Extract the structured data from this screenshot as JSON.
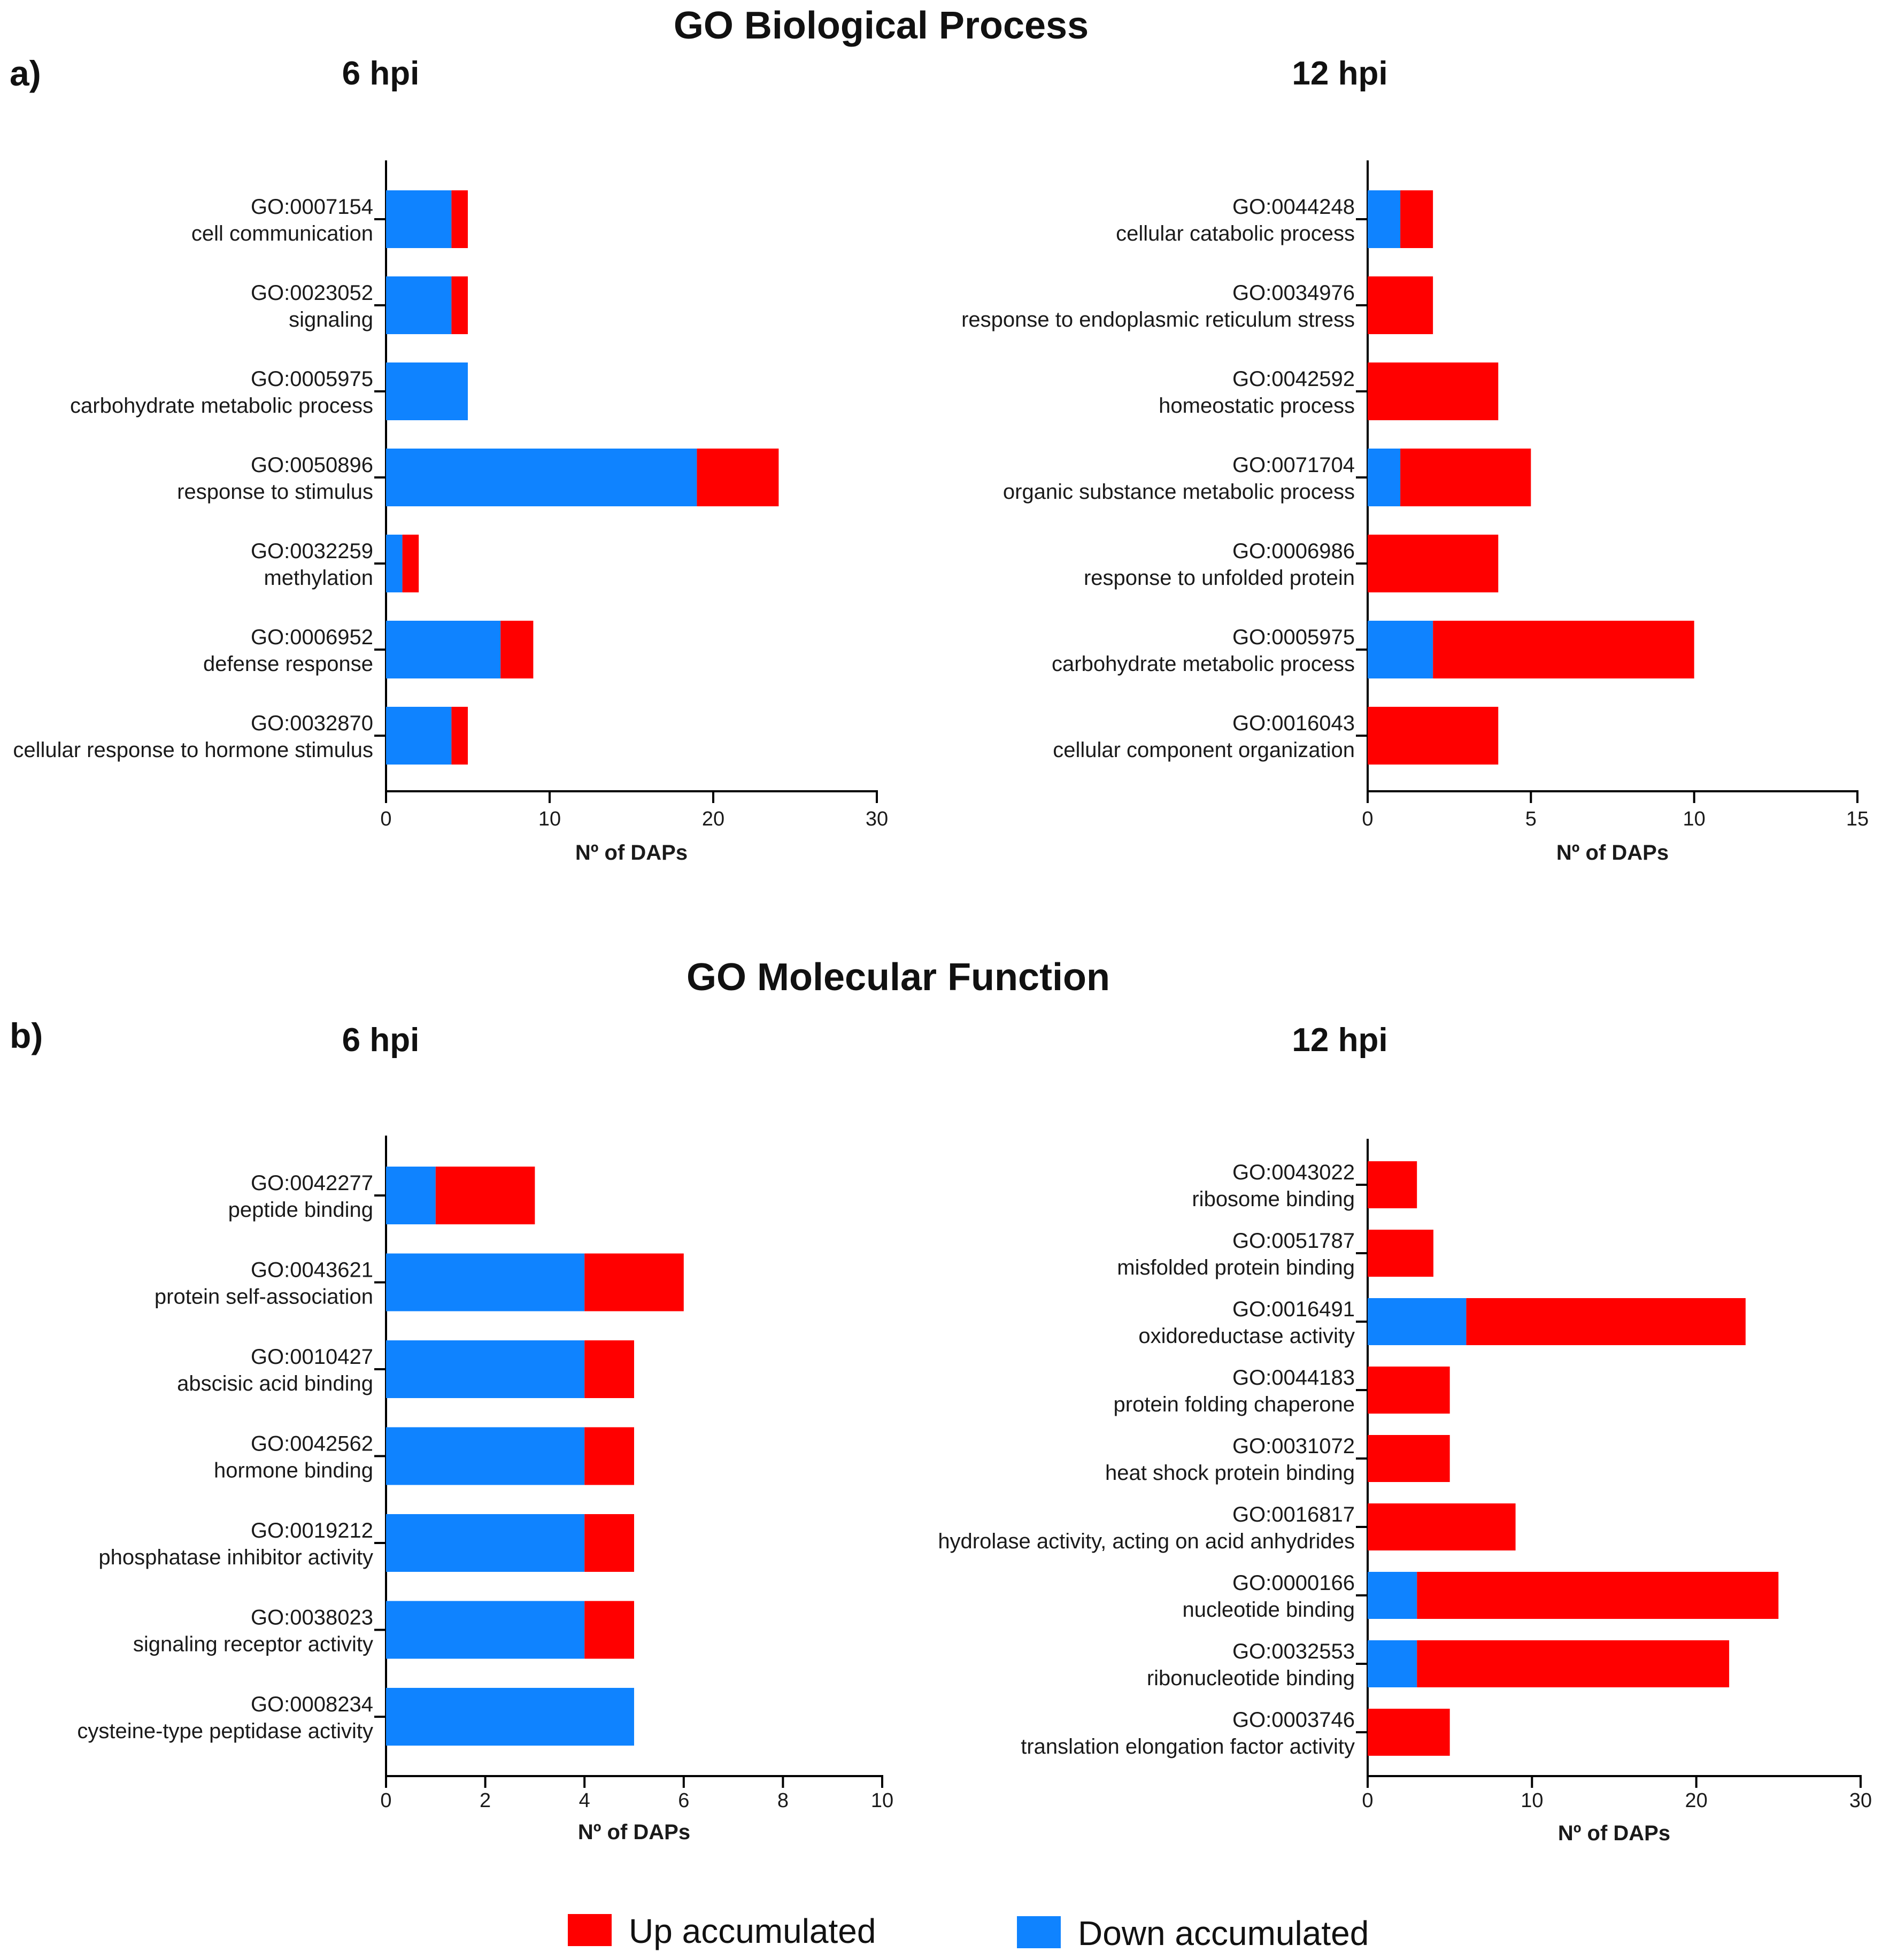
{
  "sections": {
    "bp_title": "GO Biological Process",
    "mf_title": "GO Molecular Function",
    "label_a": "a)",
    "label_b": "b)"
  },
  "colors": {
    "up": "#ff0000",
    "down": "#0f83ff"
  },
  "legend": {
    "up_label": "Up accumulated",
    "down_label": "Down accumulated"
  },
  "chart_data": [
    {
      "type": "bar",
      "orientation": "horizontal",
      "stacked": true,
      "section": "GO Biological Process",
      "title": "6 hpi",
      "xlabel": "Nº of DAPs",
      "xlim": [
        0,
        30
      ],
      "xticks": [
        0,
        10,
        20,
        30
      ],
      "categories": [
        {
          "id": "GO:0007154",
          "name": "cell communication"
        },
        {
          "id": "GO:0023052",
          "name": "signaling"
        },
        {
          "id": "GO:0005975",
          "name": "carbohydrate metabolic process"
        },
        {
          "id": "GO:0050896",
          "name": "response to stimulus"
        },
        {
          "id": "GO:0032259",
          "name": "methylation"
        },
        {
          "id": "GO:0006952",
          "name": "defense response"
        },
        {
          "id": "GO:0032870",
          "name": "cellular response to hormone stimulus"
        }
      ],
      "series": [
        {
          "name": "Down accumulated",
          "values": [
            4,
            4,
            5,
            19,
            1,
            7,
            4
          ]
        },
        {
          "name": "Up accumulated",
          "values": [
            1,
            1,
            0,
            5,
            1,
            2,
            1
          ]
        }
      ]
    },
    {
      "type": "bar",
      "orientation": "horizontal",
      "stacked": true,
      "section": "GO Biological Process",
      "title": "12 hpi",
      "xlabel": "Nº of DAPs",
      "xlim": [
        0,
        15
      ],
      "xticks": [
        0,
        5,
        10,
        15
      ],
      "categories": [
        {
          "id": "GO:0044248",
          "name": "cellular catabolic process"
        },
        {
          "id": "GO:0034976",
          "name": "response to endoplasmic reticulum stress"
        },
        {
          "id": "GO:0042592",
          "name": "homeostatic process"
        },
        {
          "id": "GO:0071704",
          "name": "organic substance metabolic process"
        },
        {
          "id": "GO:0006986",
          "name": "response to unfolded protein"
        },
        {
          "id": "GO:0005975",
          "name": "carbohydrate metabolic process"
        },
        {
          "id": "GO:0016043",
          "name": "cellular component organization"
        }
      ],
      "series": [
        {
          "name": "Down accumulated",
          "values": [
            1,
            0,
            0,
            1,
            0,
            2,
            0
          ]
        },
        {
          "name": "Up accumulated",
          "values": [
            1,
            2,
            4,
            4,
            4,
            8,
            4
          ]
        }
      ]
    },
    {
      "type": "bar",
      "orientation": "horizontal",
      "stacked": true,
      "section": "GO Molecular Function",
      "title": "6 hpi",
      "xlabel": "Nº of DAPs",
      "xlim": [
        0,
        10
      ],
      "xticks": [
        0,
        2,
        4,
        6,
        8,
        10
      ],
      "categories": [
        {
          "id": "GO:0042277",
          "name": "peptide binding"
        },
        {
          "id": "GO:0043621",
          "name": "protein self-association"
        },
        {
          "id": "GO:0010427",
          "name": "abscisic acid binding"
        },
        {
          "id": "GO:0042562",
          "name": "hormone binding"
        },
        {
          "id": "GO:0019212",
          "name": "phosphatase inhibitor activity"
        },
        {
          "id": "GO:0038023",
          "name": "signaling receptor activity"
        },
        {
          "id": "GO:0008234",
          "name": "cysteine-type peptidase activity"
        }
      ],
      "series": [
        {
          "name": "Down accumulated",
          "values": [
            1,
            4,
            4,
            4,
            4,
            4,
            5
          ]
        },
        {
          "name": "Up accumulated",
          "values": [
            2,
            2,
            1,
            1,
            1,
            1,
            0
          ]
        }
      ]
    },
    {
      "type": "bar",
      "orientation": "horizontal",
      "stacked": true,
      "section": "GO Molecular Function",
      "title": "12 hpi",
      "xlabel": "Nº of DAPs",
      "xlim": [
        0,
        30
      ],
      "xticks": [
        0,
        10,
        20,
        30
      ],
      "categories": [
        {
          "id": "GO:0043022",
          "name": "ribosome binding"
        },
        {
          "id": "GO:0051787",
          "name": "misfolded protein binding"
        },
        {
          "id": "GO:0016491",
          "name": "oxidoreductase activity"
        },
        {
          "id": "GO:0044183",
          "name": "protein folding chaperone"
        },
        {
          "id": "GO:0031072",
          "name": "heat shock protein binding"
        },
        {
          "id": "GO:0016817",
          "name": "hydrolase activity, acting on acid anhydrides"
        },
        {
          "id": "GO:0000166",
          "name": "nucleotide binding"
        },
        {
          "id": "GO:0032553",
          "name": "ribonucleotide binding"
        },
        {
          "id": "GO:0003746",
          "name": "translation elongation factor activity"
        }
      ],
      "series": [
        {
          "name": "Down accumulated",
          "values": [
            0,
            0,
            6,
            0,
            0,
            0,
            3,
            3,
            0
          ]
        },
        {
          "name": "Up accumulated",
          "values": [
            3,
            4,
            17,
            5,
            5,
            9,
            22,
            19,
            5
          ]
        }
      ]
    }
  ]
}
